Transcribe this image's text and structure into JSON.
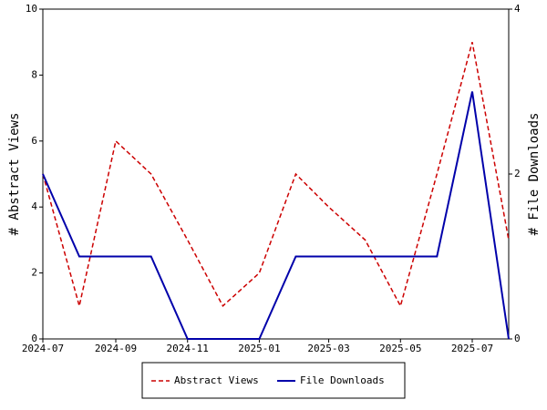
{
  "chart_data": {
    "type": "line",
    "x": [
      "2024-07",
      "2024-08",
      "2024-09",
      "2024-10",
      "2024-11",
      "2024-12",
      "2025-01",
      "2025-02",
      "2025-03",
      "2025-04",
      "2025-05",
      "2025-06",
      "2025-07",
      "2025-08"
    ],
    "xlim": [
      "2024-07",
      "2025-08"
    ],
    "xticks": [
      "2024-07",
      "2024-09",
      "2024-11",
      "2025-01",
      "2025-03",
      "2025-05",
      "2025-07"
    ],
    "ylabel": "# Abstract Views",
    "y2label": "# File Downloads",
    "ylim": [
      0,
      10
    ],
    "yticks": [
      0,
      2,
      4,
      6,
      8,
      10
    ],
    "y2lim": [
      0,
      4
    ],
    "y2ticks": [
      0,
      2,
      4
    ],
    "series": [
      {
        "name": "Abstract Views",
        "color": "#cc0000",
        "dashed": true,
        "values": [
          5,
          1,
          6,
          5,
          3,
          1,
          2,
          5,
          4,
          3,
          1,
          5,
          9,
          3
        ]
      },
      {
        "name": "File Downloads",
        "color": "#0000aa",
        "axis": "y2",
        "values": [
          2,
          1,
          1,
          1,
          0,
          0,
          0,
          1,
          1,
          1,
          1,
          1,
          3,
          0
        ]
      }
    ],
    "legend": "bottom"
  }
}
